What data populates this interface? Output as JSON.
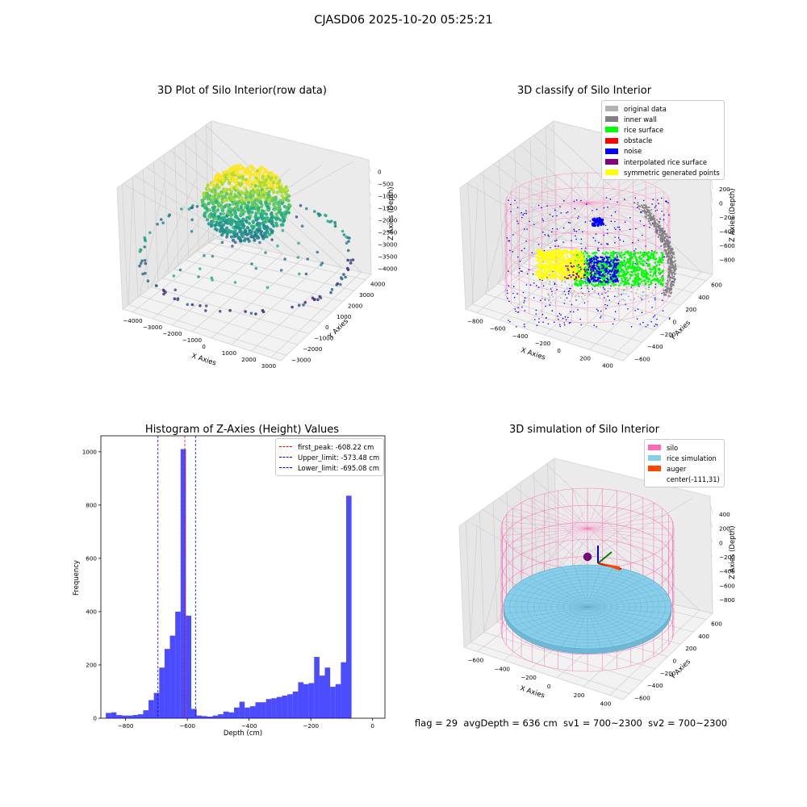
{
  "figure": {
    "suptitle": "CJASD06 2025-10-20 05:25:21",
    "status_line": "flag = 29  avgDepth = 636 cm  sv1 = 700~2300  sv2 = 700~2300"
  },
  "panels": {
    "raw": {
      "title": "3D Plot of Silo Interior(row data)",
      "xlabel": "X Axies",
      "ylabel": "Y Axies",
      "zlabel": "Z Axies (Depth)",
      "xticks": [
        "−4000",
        "−3000",
        "−2000",
        "−1000",
        "0",
        "1000",
        "2000",
        "3000"
      ],
      "yticks": [
        "−3000",
        "−2000",
        "−1000",
        "0",
        "1000",
        "2000",
        "3000",
        "4000"
      ],
      "zticks": [
        "0",
        "−500",
        "−1000",
        "−1500",
        "−2000",
        "−2500",
        "−3000",
        "−3500",
        "−4000"
      ]
    },
    "classify": {
      "title": "3D classify of Silo Interior",
      "xlabel": "X Axies",
      "ylabel": "Y Axies",
      "zlabel": "Z Axies (Depth)",
      "xticks": [
        "−800",
        "−600",
        "−400",
        "−200",
        "0",
        "200",
        "400"
      ],
      "yticks": [
        "−600",
        "−400",
        "−200",
        "0",
        "200",
        "400",
        "600"
      ],
      "zticks": [
        "200",
        "0",
        "−200",
        "−400",
        "−600",
        "−800"
      ],
      "legend": [
        {
          "label": "original data",
          "color": "#b3b3b3"
        },
        {
          "label": "inner wall",
          "color": "#808080"
        },
        {
          "label": "rice surface",
          "color": "#00ff00"
        },
        {
          "label": "obstacle",
          "color": "#ff0000"
        },
        {
          "label": "noise",
          "color": "#0000ff"
        },
        {
          "label": "interpolated rice surface",
          "color": "#800080"
        },
        {
          "label": "symmetric generated points",
          "color": "#ffff00"
        }
      ]
    },
    "simulation": {
      "title": "3D simulation of Silo Interior",
      "xlabel": "X Axies",
      "ylabel": "Y Axies",
      "zlabel": "Z Axies (Depth)",
      "xticks": [
        "−600",
        "−400",
        "−200",
        "0",
        "200",
        "400"
      ],
      "yticks": [
        "−600",
        "−400",
        "−200",
        "0",
        "200",
        "400",
        "600"
      ],
      "zticks": [
        "400",
        "200",
        "0",
        "−200",
        "−400",
        "−600",
        "−800"
      ],
      "legend": [
        {
          "label": "silo",
          "color": "#ff69b4"
        },
        {
          "label": "rice simulation",
          "color": "#87ceeb"
        },
        {
          "label": "auger",
          "color": "#ff4500"
        },
        {
          "label": "center(-111,31)",
          "color": "#ffffff"
        }
      ]
    }
  },
  "chart_data": [
    {
      "type": "bar",
      "title": "Histogram of Z-Axies (Height) Values",
      "xlabel": "Depth (cm)",
      "ylabel": "Frequency",
      "xlim": [
        -880,
        40
      ],
      "ylim": [
        0,
        1060
      ],
      "xticks": [
        -800,
        -600,
        -400,
        -200,
        0
      ],
      "yticks": [
        0,
        200,
        400,
        600,
        800,
        1000
      ],
      "bar_color": "#0000ff",
      "bin_edges": [
        -864,
        -846.7,
        -829.4,
        -812.1,
        -794.8,
        -777.5,
        -760.2,
        -742.9,
        -725.6,
        -708.3,
        -691,
        -673.7,
        -656.4,
        -639.1,
        -621.8,
        -604.5,
        -587.2,
        -569.9,
        -552.6,
        -535.3,
        -518,
        -500.7,
        -483.4,
        -466.1,
        -448.8,
        -431.5,
        -414.2,
        -396.9,
        -379.6,
        -362.3,
        -345,
        -327.7,
        -310.4,
        -293.1,
        -275.8,
        -258.5,
        -241.2,
        -223.9,
        -206.6,
        -189.3,
        -172,
        -154.7,
        -137.4,
        -120.1,
        -102.8,
        -85.5,
        -68.2,
        -50.9,
        -33.6,
        -16.3,
        1
      ],
      "counts": [
        20,
        22,
        12,
        10,
        10,
        12,
        15,
        30,
        68,
        95,
        190,
        260,
        310,
        400,
        1010,
        385,
        35,
        10,
        8,
        6,
        10,
        15,
        25,
        22,
        40,
        62,
        40,
        45,
        60,
        60,
        72,
        75,
        80,
        85,
        90,
        100,
        135,
        128,
        132,
        230,
        160,
        190,
        118,
        128,
        210,
        835,
        0,
        0,
        0,
        0
      ],
      "reference_lines": [
        {
          "label": "first_peak: -608.22 cm",
          "value": -608.22,
          "color": "#ff0000"
        },
        {
          "label": "Upper_limit: -573.48 cm",
          "value": -573.48,
          "color": "#0000ff"
        },
        {
          "label": "Lower_limit: -695.08 cm",
          "value": -695.08,
          "color": "#0000ff"
        }
      ],
      "legend_position": "top-right",
      "grid": false
    }
  ]
}
